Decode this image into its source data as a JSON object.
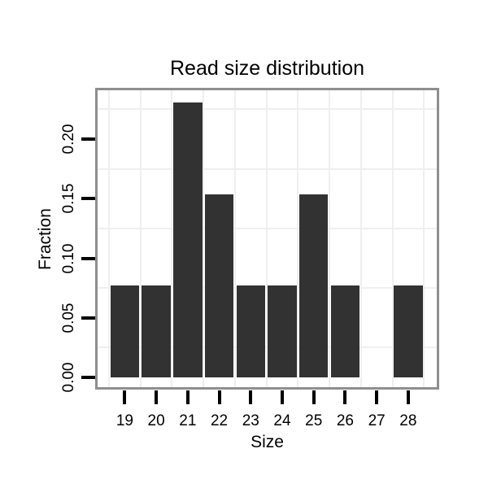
{
  "chart_data": {
    "type": "bar",
    "title": "Read size distribution",
    "xlabel": "Size",
    "ylabel": "Fraction",
    "categories": [
      19,
      20,
      21,
      22,
      23,
      24,
      25,
      26,
      27,
      28
    ],
    "values": [
      0.0769,
      0.0769,
      0.2308,
      0.1538,
      0.0769,
      0.0769,
      0.1538,
      0.0769,
      0,
      0.0769
    ],
    "x_tick_labels": [
      "19",
      "20",
      "21",
      "22",
      "23",
      "24",
      "25",
      "26",
      "27",
      "28"
    ],
    "y_tick_labels": [
      "0.00",
      "0.05",
      "0.10",
      "0.15",
      "0.20"
    ],
    "y_tick_values": [
      0,
      0.05,
      0.1,
      0.15,
      0.2
    ],
    "x_minor_gridlines": [
      18.5,
      19.5,
      20.5,
      21.5,
      22.5,
      23.5,
      24.5,
      25.5,
      26.5,
      27.5,
      28.5
    ],
    "y_minor_gridlines": [
      0.025,
      0.075,
      0.125,
      0.175,
      0.225
    ],
    "ylim": [
      -0.0116,
      0.2427
    ],
    "xlim": [
      18.05,
      28.95
    ],
    "grid": "minor-only",
    "legend": "none",
    "colors": {
      "bar_fill": "#323232",
      "panel_border": "#8f8f8f",
      "gridline": "#efefef",
      "tick": "#000000",
      "text": "#000000",
      "background": "#ffffff"
    }
  }
}
